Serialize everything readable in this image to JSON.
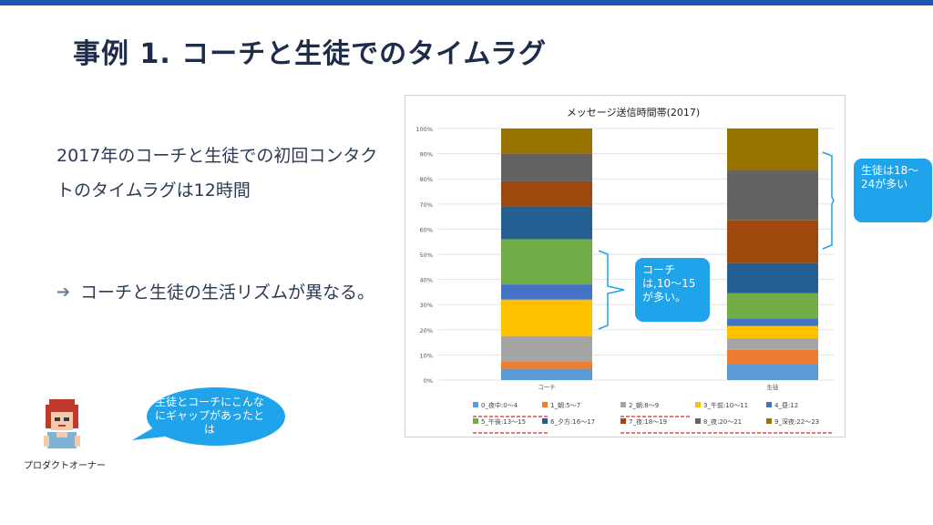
{
  "slide": {
    "title": "事例 1. コーチと生徒でのタイムラグ",
    "body": "2017年のコーチと生徒での初回コンタクトのタイムラグは12時間",
    "bullet_text": "コーチと生徒の生活リズムが異なる。",
    "bullet_icon": "arrow-right-icon"
  },
  "callouts": {
    "coach": "コーチは,10〜15が多い。",
    "student": "生徒は18〜24が多い"
  },
  "speech": {
    "text": "生徒とコーチにこんなにギャップがあったとは"
  },
  "avatar": {
    "label": "プロダクトオーナー"
  },
  "chart_data": {
    "type": "bar",
    "stacked": true,
    "percent": true,
    "title": "メッセージ送信時間帯(2017)",
    "categories": [
      "コーチ",
      "生徒"
    ],
    "ylim": [
      0,
      100
    ],
    "yticks": [
      "0%",
      "10%",
      "20%",
      "30%",
      "40%",
      "50%",
      "60%",
      "70%",
      "80%",
      "90%",
      "100%"
    ],
    "legend_position": "bottom",
    "series": [
      {
        "name": "0_夜中:0〜4",
        "color": "#5b9bd5",
        "values": [
          4.5,
          6.5
        ]
      },
      {
        "name": "1_朝:5〜7",
        "color": "#ed7d31",
        "values": [
          3,
          5.5
        ]
      },
      {
        "name": "2_朝:8〜9",
        "color": "#a5a5a5",
        "values": [
          10,
          4.5
        ]
      },
      {
        "name": "3_午前:10〜11",
        "color": "#ffc000",
        "values": [
          14.5,
          5
        ]
      },
      {
        "name": "4_昼:12",
        "color": "#4472c4",
        "values": [
          6,
          3
        ]
      },
      {
        "name": "5_午後:13〜15",
        "color": "#70ad47",
        "values": [
          18,
          10
        ]
      },
      {
        "name": "6_夕方:16〜17",
        "color": "#255e91",
        "values": [
          13,
          12
        ]
      },
      {
        "name": "7_夜:18〜19",
        "color": "#9e480e",
        "values": [
          10,
          17
        ]
      },
      {
        "name": "8_夜:20〜21",
        "color": "#636363",
        "values": [
          11,
          20
        ]
      },
      {
        "name": "9_深夜:22〜23",
        "color": "#997300",
        "values": [
          10,
          16.5
        ]
      }
    ]
  }
}
